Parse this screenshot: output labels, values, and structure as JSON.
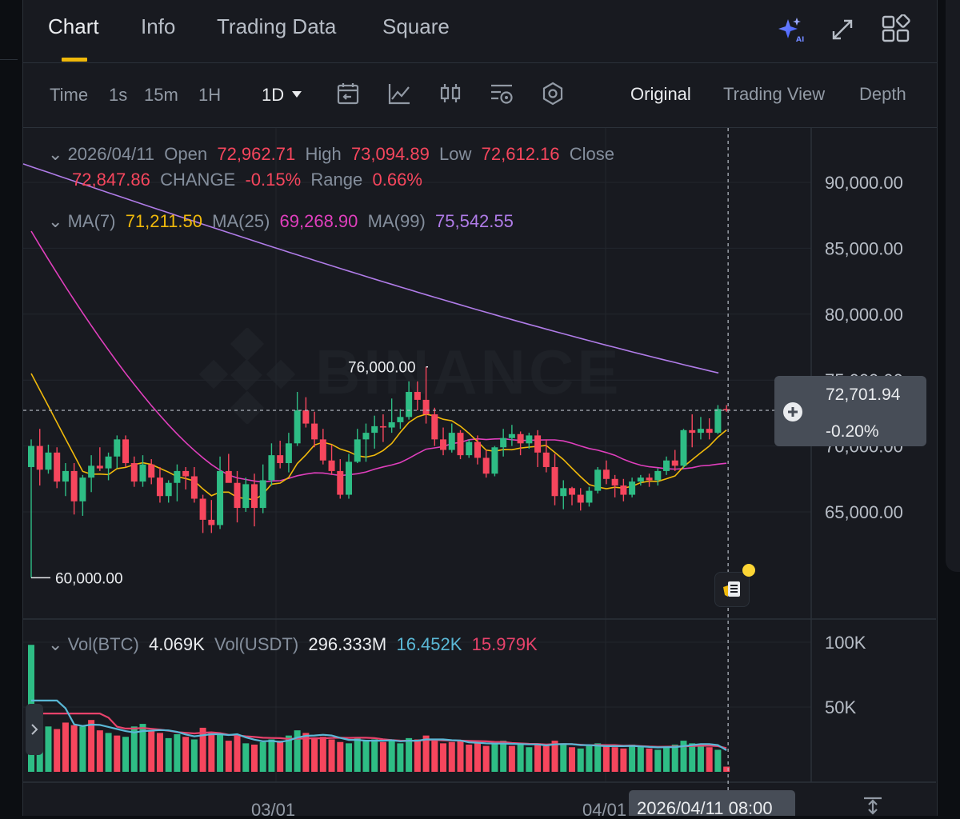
{
  "tabs": {
    "chart": "Chart",
    "info": "Info",
    "trading_data": "Trading Data",
    "square": "Square"
  },
  "toolbar": {
    "time": "Time",
    "i1s": "1s",
    "i15m": "15m",
    "i1h": "1H",
    "i1d": "1D",
    "original": "Original",
    "trading_view": "Trading View",
    "depth": "Depth"
  },
  "ohlc": {
    "date": "2026/04/11",
    "open_label": "Open",
    "open": "72,962.71",
    "high_label": "High",
    "high": "73,094.89",
    "low_label": "Low",
    "low": "72,612.16",
    "close_label": "Close",
    "close": "72,847.86",
    "change_label": "CHANGE",
    "change": "-0.15%",
    "range_label": "Range",
    "range": "0.66%"
  },
  "ma": {
    "ma7_label": "MA(7)",
    "ma7": "71,211.50",
    "ma25_label": "MA(25)",
    "ma25": "69,268.90",
    "ma99_label": "MA(99)",
    "ma99": "75,542.55"
  },
  "vol": {
    "btc_label": "Vol(BTC)",
    "btc": "4.069K",
    "usdt_label": "Vol(USDT)",
    "usdt": "296.333M",
    "ma5": "16.452K",
    "ma10": "15.979K"
  },
  "price_tag": {
    "price": "72,701.94",
    "change": "-0.20%"
  },
  "watermark": "BINANCE",
  "annotations": {
    "high_label": "76,000.00",
    "low_label": "60,000.00"
  },
  "crosshair_time": "2026/04/11 08:00",
  "colors": {
    "up": "#2ebd85",
    "down": "#f6465d",
    "ma7": "#f0b90b",
    "ma25": "#e03fbd",
    "ma99": "#b07ce8",
    "vol_ma5": "#5ab8d6",
    "vol_ma10": "#e8426b",
    "accent": "#f0b90b"
  },
  "chart_data": {
    "type": "candlestick",
    "symbol_volume_unit": "BTC",
    "price_axis": {
      "ticks": [
        "90,000.00",
        "85,000.00",
        "80,000.00",
        "75,000.00",
        "70,000.00",
        "65,000.00"
      ],
      "range": [
        59000,
        92300
      ]
    },
    "volume_axis": {
      "ticks": [
        "100K",
        "50K"
      ],
      "range": [
        0,
        120000
      ]
    },
    "x_axis": {
      "labels": [
        "03/01",
        "04/01"
      ]
    },
    "candles": [
      [
        68400,
        70500,
        60000,
        70000
      ],
      [
        70000,
        71300,
        67000,
        68200
      ],
      [
        68200,
        70100,
        67900,
        69500
      ],
      [
        69500,
        69900,
        66800,
        67300
      ],
      [
        67300,
        68700,
        66200,
        68100
      ],
      [
        68100,
        68700,
        64800,
        65800
      ],
      [
        65800,
        67800,
        64700,
        67600
      ],
      [
        67600,
        69300,
        66500,
        68500
      ],
      [
        68500,
        69900,
        68100,
        68300
      ],
      [
        68300,
        69500,
        67400,
        69200
      ],
      [
        69200,
        70800,
        68300,
        70500
      ],
      [
        70500,
        70800,
        68400,
        68700
      ],
      [
        68700,
        69200,
        66900,
        67300
      ],
      [
        67300,
        69300,
        66900,
        68600
      ],
      [
        68600,
        69000,
        67100,
        67600
      ],
      [
        67600,
        68400,
        65700,
        66200
      ],
      [
        66200,
        67400,
        65700,
        67200
      ],
      [
        67200,
        68600,
        65800,
        68100
      ],
      [
        68100,
        68400,
        66700,
        67700
      ],
      [
        67700,
        68400,
        65700,
        66000
      ],
      [
        66000,
        66300,
        63400,
        64400
      ],
      [
        64400,
        65900,
        63400,
        64000
      ],
      [
        64000,
        69200,
        63700,
        68100
      ],
      [
        68100,
        69400,
        67300,
        67200
      ],
      [
        67200,
        68100,
        64200,
        65300
      ],
      [
        65300,
        67600,
        65000,
        67100
      ],
      [
        67100,
        67900,
        63900,
        65300
      ],
      [
        65300,
        68600,
        64900,
        67400
      ],
      [
        67400,
        70200,
        67000,
        69300
      ],
      [
        69300,
        70400,
        68300,
        68700
      ],
      [
        68700,
        71000,
        68000,
        70200
      ],
      [
        70200,
        74100,
        70000,
        72700
      ],
      [
        72700,
        73700,
        71400,
        71700
      ],
      [
        71700,
        72600,
        69900,
        70500
      ],
      [
        70500,
        71300,
        68600,
        68900
      ],
      [
        68900,
        70100,
        67800,
        68100
      ],
      [
        68100,
        69000,
        66000,
        66300
      ],
      [
        66300,
        69400,
        66000,
        68800
      ],
      [
        68800,
        71300,
        68700,
        70500
      ],
      [
        70500,
        71700,
        68800,
        71000
      ],
      [
        71000,
        72300,
        69800,
        71500
      ],
      [
        71500,
        72400,
        70300,
        71400
      ],
      [
        71400,
        73600,
        71000,
        71800
      ],
      [
        71800,
        72800,
        71300,
        72200
      ],
      [
        72200,
        74900,
        72000,
        74100
      ],
      [
        74100,
        74900,
        72700,
        73500
      ],
      [
        73500,
        76000,
        71700,
        72400
      ],
      [
        72400,
        72900,
        70000,
        70500
      ],
      [
        70500,
        71400,
        69300,
        69700
      ],
      [
        69700,
        71700,
        69500,
        71000
      ],
      [
        71000,
        71200,
        69000,
        69300
      ],
      [
        69300,
        70500,
        69100,
        70300
      ],
      [
        70300,
        70800,
        68600,
        69100
      ],
      [
        69100,
        69700,
        67600,
        67900
      ],
      [
        67900,
        70000,
        67700,
        69900
      ],
      [
        69900,
        71300,
        69200,
        70600
      ],
      [
        70600,
        71600,
        70000,
        70900
      ],
      [
        70900,
        71100,
        69300,
        70200
      ],
      [
        70200,
        71000,
        69800,
        70800
      ],
      [
        70800,
        71200,
        68400,
        69500
      ],
      [
        69500,
        70500,
        68000,
        68400
      ],
      [
        68400,
        69400,
        65500,
        66200
      ],
      [
        66200,
        67400,
        65200,
        66800
      ],
      [
        66800,
        66900,
        65500,
        66300
      ],
      [
        66300,
        66800,
        65100,
        65700
      ],
      [
        65700,
        66900,
        65400,
        66600
      ],
      [
        66600,
        68400,
        66400,
        68200
      ],
      [
        68200,
        68900,
        67100,
        67500
      ],
      [
        67500,
        67800,
        66100,
        67000
      ],
      [
        67000,
        67500,
        65800,
        66300
      ],
      [
        66300,
        67600,
        66100,
        67300
      ],
      [
        67300,
        67800,
        67000,
        67600
      ],
      [
        67600,
        67900,
        66900,
        67400
      ],
      [
        67400,
        68300,
        67000,
        68100
      ],
      [
        68100,
        69200,
        67800,
        68900
      ],
      [
        68900,
        69700,
        68100,
        68500
      ],
      [
        68500,
        71300,
        68300,
        71200
      ],
      [
        71200,
        72400,
        69900,
        71000
      ],
      [
        71000,
        72200,
        70500,
        71300
      ],
      [
        71300,
        72100,
        70500,
        71000
      ],
      [
        71000,
        73100,
        70900,
        72800
      ],
      [
        72800,
        73100,
        72600,
        72700
      ]
    ],
    "volumes": [
      [
        98000,
        0
      ],
      [
        41000,
        0
      ],
      [
        35000,
        0
      ],
      [
        33000,
        1
      ],
      [
        38000,
        1
      ],
      [
        36000,
        1
      ],
      [
        35000,
        0
      ],
      [
        40000,
        1
      ],
      [
        32000,
        1
      ],
      [
        30000,
        0
      ],
      [
        28000,
        1
      ],
      [
        27000,
        0
      ],
      [
        35000,
        0
      ],
      [
        37000,
        0
      ],
      [
        32000,
        1
      ],
      [
        30000,
        1
      ],
      [
        26000,
        0
      ],
      [
        29000,
        0
      ],
      [
        27000,
        1
      ],
      [
        25000,
        0
      ],
      [
        34000,
        1
      ],
      [
        30000,
        1
      ],
      [
        29000,
        0
      ],
      [
        24000,
        1
      ],
      [
        28000,
        1
      ],
      [
        22000,
        0
      ],
      [
        21000,
        1
      ],
      [
        23000,
        0
      ],
      [
        25000,
        0
      ],
      [
        24000,
        1
      ],
      [
        28000,
        0
      ],
      [
        32000,
        0
      ],
      [
        30000,
        1
      ],
      [
        26000,
        1
      ],
      [
        27000,
        1
      ],
      [
        25000,
        1
      ],
      [
        23000,
        1
      ],
      [
        22000,
        0
      ],
      [
        26000,
        0
      ],
      [
        24000,
        0
      ],
      [
        25000,
        0
      ],
      [
        23000,
        1
      ],
      [
        24000,
        0
      ],
      [
        22000,
        0
      ],
      [
        26000,
        0
      ],
      [
        25000,
        1
      ],
      [
        28000,
        1
      ],
      [
        24000,
        1
      ],
      [
        22000,
        1
      ],
      [
        23000,
        1
      ],
      [
        24000,
        1
      ],
      [
        21000,
        1
      ],
      [
        22000,
        1
      ],
      [
        20000,
        1
      ],
      [
        22000,
        0
      ],
      [
        24000,
        0
      ],
      [
        20000,
        1
      ],
      [
        21000,
        0
      ],
      [
        19000,
        0
      ],
      [
        22000,
        1
      ],
      [
        20000,
        1
      ],
      [
        24000,
        1
      ],
      [
        22000,
        0
      ],
      [
        19000,
        1
      ],
      [
        18000,
        0
      ],
      [
        20000,
        0
      ],
      [
        22000,
        0
      ],
      [
        20000,
        1
      ],
      [
        19000,
        1
      ],
      [
        18000,
        1
      ],
      [
        21000,
        0
      ],
      [
        20000,
        0
      ],
      [
        18000,
        1
      ],
      [
        17000,
        0
      ],
      [
        19000,
        0
      ],
      [
        21000,
        0
      ],
      [
        24000,
        0
      ],
      [
        22000,
        0
      ],
      [
        21000,
        0
      ],
      [
        19000,
        1
      ],
      [
        17000,
        0
      ],
      [
        4000,
        1
      ]
    ]
  }
}
